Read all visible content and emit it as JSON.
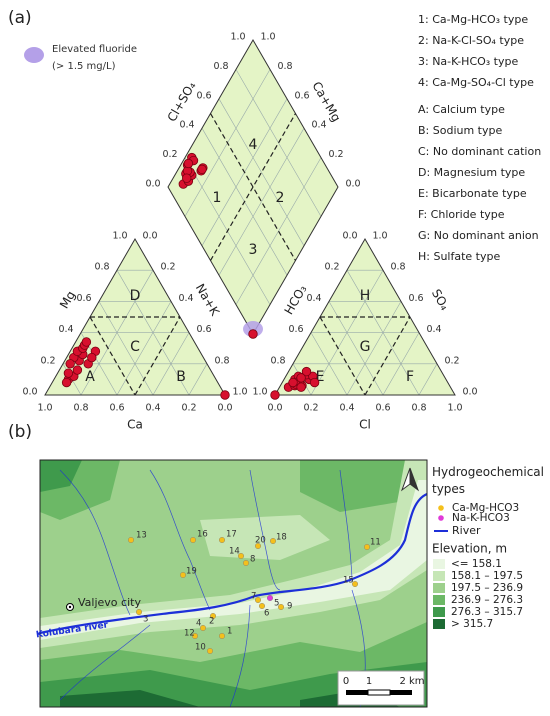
{
  "chart_data": [
    {
      "type": "piper",
      "panel_label": "(a)",
      "ticks": [
        {
          "value": 0,
          "label": "0.0"
        },
        {
          "value": 0.2,
          "label": "0.2"
        },
        {
          "value": 0.4,
          "label": "0.4"
        },
        {
          "value": 0.6,
          "label": "0.6"
        },
        {
          "value": 0.8,
          "label": "0.8"
        },
        {
          "value": 1,
          "label": "1.0"
        }
      ],
      "axis_labels": {
        "ca": "Ca",
        "mg": "Mg",
        "nak": "Na+K",
        "cl": "Cl",
        "so4": "SO₄",
        "hco3": "HCO₃",
        "clso4": "Cl+SO₄",
        "camg": "Ca+Mg"
      },
      "zone_labels": {
        "diamond": [
          "1",
          "2",
          "3",
          "4"
        ],
        "cation": [
          "A",
          "B",
          "C",
          "D"
        ],
        "anion": [
          "E",
          "F",
          "G",
          "H"
        ]
      },
      "type_legend": [
        "1: Ca-Mg-HCO₃ type",
        "2: Na-K-Cl-SO₄ type",
        "3: Na-K-HCO₃ type",
        "4: Ca-Mg-SO₄-Cl type"
      ],
      "class_legend": [
        "A: Calcium type",
        "B: Sodium type",
        "C: No dominant cation",
        "D: Magnesium type",
        "E: Bicarbonate type",
        "F: Chloride type",
        "G: No dominant anion",
        "H: Sulfate type"
      ],
      "sample_color": "#d7102e",
      "samples": [
        {
          "ca": 0.82,
          "mg": 0.1,
          "cl": 0.05,
          "so4": 0.05
        },
        {
          "ca": 0.78,
          "mg": 0.12,
          "cl": 0.08,
          "so4": 0.06
        },
        {
          "ca": 0.8,
          "mg": 0.14,
          "cl": 0.06,
          "so4": 0.1
        },
        {
          "ca": 0.74,
          "mg": 0.16,
          "cl": 0.1,
          "so4": 0.08
        },
        {
          "ca": 0.7,
          "mg": 0.22,
          "cl": 0.12,
          "so4": 0.06
        },
        {
          "ca": 0.72,
          "mg": 0.24,
          "cl": 0.07,
          "so4": 0.12
        },
        {
          "ca": 0.66,
          "mg": 0.26,
          "cl": 0.09,
          "so4": 0.09
        },
        {
          "ca": 0.68,
          "mg": 0.28,
          "cl": 0.14,
          "so4": 0.1
        },
        {
          "ca": 0.64,
          "mg": 0.3,
          "cl": 0.11,
          "so4": 0.13
        },
        {
          "ca": 0.62,
          "mg": 0.32,
          "cl": 0.08,
          "so4": 0.07
        },
        {
          "ca": 0.6,
          "mg": 0.34,
          "cl": 0.12,
          "so4": 0.05
        },
        {
          "ca": 0.66,
          "mg": 0.2,
          "cl": 0.15,
          "so4": 0.12
        },
        {
          "ca": 0.58,
          "mg": 0.28,
          "cl": 0.1,
          "so4": 0.15
        },
        {
          "ca": 0.84,
          "mg": 0.08,
          "cl": 0.06,
          "so4": 0.08
        },
        {
          "ca": 0.76,
          "mg": 0.2,
          "cl": 0.09,
          "so4": 0.11
        },
        {
          "ca": 0.62,
          "mg": 0.24,
          "cl": 0.18,
          "so4": 0.08
        }
      ],
      "fluoride": {
        "labels": [
          "Elevated fluoride",
          "(> 1.5 mg/L)"
        ],
        "color": "#b4a0e8",
        "sample": {
          "ca": 0,
          "mg": 0,
          "cl": 0,
          "so4": 0
        }
      }
    },
    {
      "type": "map",
      "panel_label": "(b)",
      "legend_title": "Hydrogeochemical types",
      "series": [
        {
          "name": "Ca-Mg-HCO3",
          "color": "#f4c01c",
          "labels": [
            "13",
            "16",
            "17",
            "20",
            "18",
            "14",
            "8",
            "11",
            "19",
            "15",
            "3",
            "4",
            "2",
            "12",
            "1",
            "10",
            "6",
            "7",
            "9"
          ]
        },
        {
          "name": "Na-K-HCO3",
          "color": "#e03ad8",
          "labels": [
            "5"
          ]
        }
      ],
      "river": {
        "name": "River",
        "color": "#1d2fd8"
      },
      "elevation": {
        "title": "Elevation, m",
        "classes": [
          {
            "label": "<= 158.1",
            "color": "#e9f6e2"
          },
          {
            "label": "158.1 – 197.5",
            "color": "#c6e6b6"
          },
          {
            "label": "197.5 – 236.9",
            "color": "#9dd08c"
          },
          {
            "label": "236.9 – 276.3",
            "color": "#6cb866"
          },
          {
            "label": "276.3 – 315.7",
            "color": "#3f9a4c"
          },
          {
            "label": "> 315.7",
            "color": "#1d6b34"
          }
        ]
      },
      "places": [
        "Valjevo city",
        "Kolubara river"
      ],
      "scale_labels": [
        "0",
        "1",
        "2 km"
      ]
    }
  ]
}
